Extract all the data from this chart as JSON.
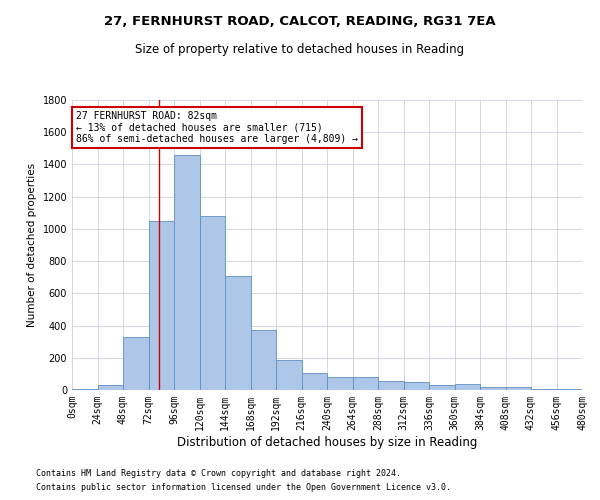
{
  "title1": "27, FERNHURST ROAD, CALCOT, READING, RG31 7EA",
  "title2": "Size of property relative to detached houses in Reading",
  "xlabel": "Distribution of detached houses by size in Reading",
  "ylabel": "Number of detached properties",
  "footnote1": "Contains HM Land Registry data © Crown copyright and database right 2024.",
  "footnote2": "Contains public sector information licensed under the Open Government Licence v3.0.",
  "annotation_title": "27 FERNHURST ROAD: 82sqm",
  "annotation_line1": "← 13% of detached houses are smaller (715)",
  "annotation_line2": "86% of semi-detached houses are larger (4,809) →",
  "property_size": 82,
  "bin_edges": [
    0,
    24,
    48,
    72,
    96,
    120,
    144,
    168,
    192,
    216,
    240,
    264,
    288,
    312,
    336,
    360,
    384,
    408,
    432,
    456,
    480
  ],
  "bar_heights": [
    5,
    30,
    330,
    1050,
    1460,
    1080,
    710,
    370,
    185,
    105,
    80,
    80,
    55,
    50,
    30,
    35,
    20,
    20,
    5,
    5
  ],
  "bar_color": "#aec6e8",
  "bar_edge_color": "#5b8fc4",
  "vline_color": "#cc0000",
  "vline_x": 82,
  "annotation_box_color": "#cc0000",
  "ylim": [
    0,
    1800
  ],
  "yticks": [
    0,
    200,
    400,
    600,
    800,
    1000,
    1200,
    1400,
    1600,
    1800
  ],
  "background_color": "#ffffff",
  "grid_color": "#c0c8d8",
  "title1_fontsize": 9.5,
  "title2_fontsize": 8.5,
  "xlabel_fontsize": 8.5,
  "ylabel_fontsize": 7.5,
  "footnote_fontsize": 6.0,
  "tick_fontsize": 7,
  "ytick_fontsize": 7
}
